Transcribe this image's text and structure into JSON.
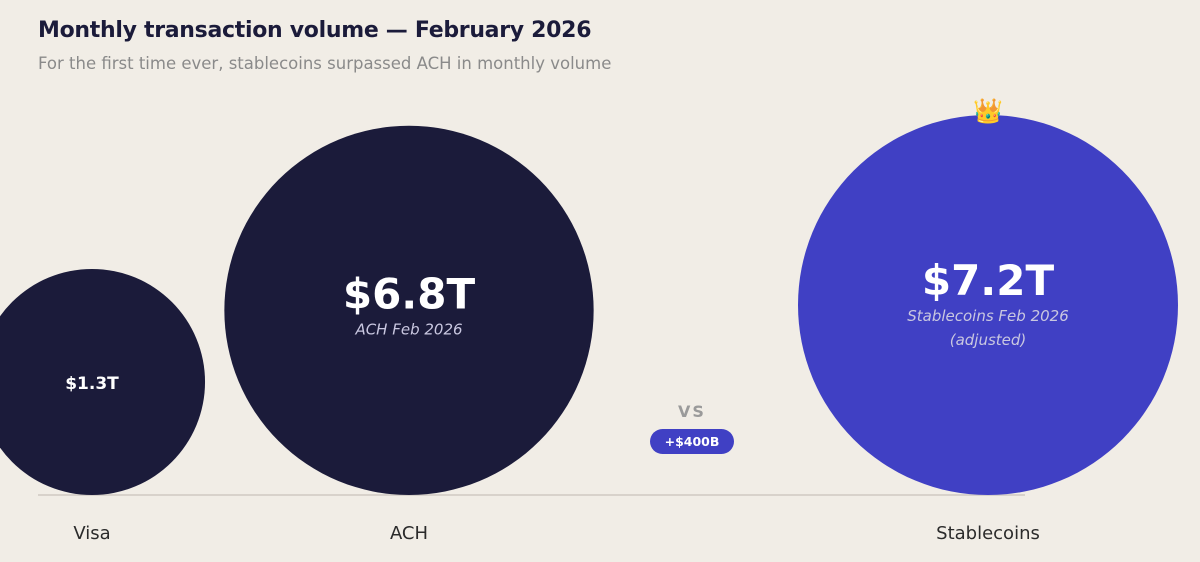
{
  "header": {
    "title": "Monthly transaction volume — February 2026",
    "subtitle": "For the first time ever, stablecoins surpassed ACH in monthly volume"
  },
  "chart_data": {
    "type": "bubble",
    "title": "Monthly transaction volume — February 2026",
    "subtitle": "For the first time ever, stablecoins surpassed ACH in monthly volume",
    "unit": "trillion USD",
    "categories": [
      "Visa",
      "ACH",
      "Stablecoins"
    ],
    "values": [
      1.3,
      6.8,
      7.2
    ],
    "bubbles": [
      {
        "category": "Visa",
        "value": 1.3,
        "value_label": "$1.3T",
        "sublabel": [],
        "color": "#1b1b3a"
      },
      {
        "category": "ACH",
        "value": 6.8,
        "value_label": "$6.8T",
        "sublabel": [
          "ACH Feb 2026"
        ],
        "color": "#1b1b3a"
      },
      {
        "category": "Stablecoins",
        "value": 7.2,
        "value_label": "$7.2T",
        "sublabel": [
          "Stablecoins Feb 2026",
          "(adjusted)"
        ],
        "color": "#4040c4"
      }
    ],
    "comparison": {
      "vs_label": "VS",
      "difference_label": "+$400B",
      "difference_color": "#4040c4"
    },
    "highlight_icon": "crown-icon",
    "baseline": true,
    "grid": false
  }
}
